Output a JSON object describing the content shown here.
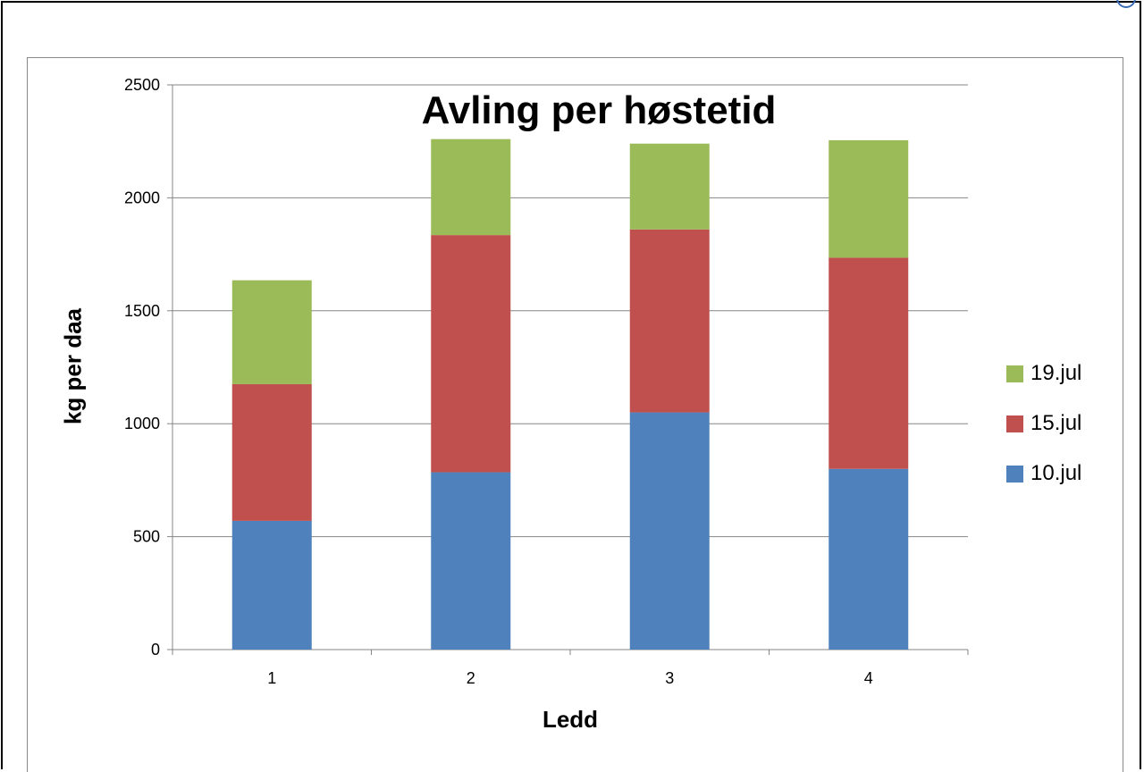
{
  "chart_data": {
    "type": "bar",
    "stacked": true,
    "title": "Avling per høstetid",
    "xlabel": "Ledd",
    "ylabel": "kg per daa",
    "categories": [
      "1",
      "2",
      "3",
      "4"
    ],
    "ylim": [
      0,
      2500
    ],
    "yticks": [
      "0",
      "500",
      "1000",
      "1500",
      "2000",
      "2500"
    ],
    "grid": true,
    "legend_position": "right",
    "series": [
      {
        "name": "10.jul",
        "color": "#4f81bd",
        "values": [
          570,
          785,
          1050,
          800
        ]
      },
      {
        "name": "15.jul",
        "color": "#c0504d",
        "values": [
          605,
          1050,
          810,
          935
        ]
      },
      {
        "name": "19.jul",
        "color": "#9bbb59",
        "values": [
          460,
          425,
          380,
          520
        ]
      }
    ]
  }
}
